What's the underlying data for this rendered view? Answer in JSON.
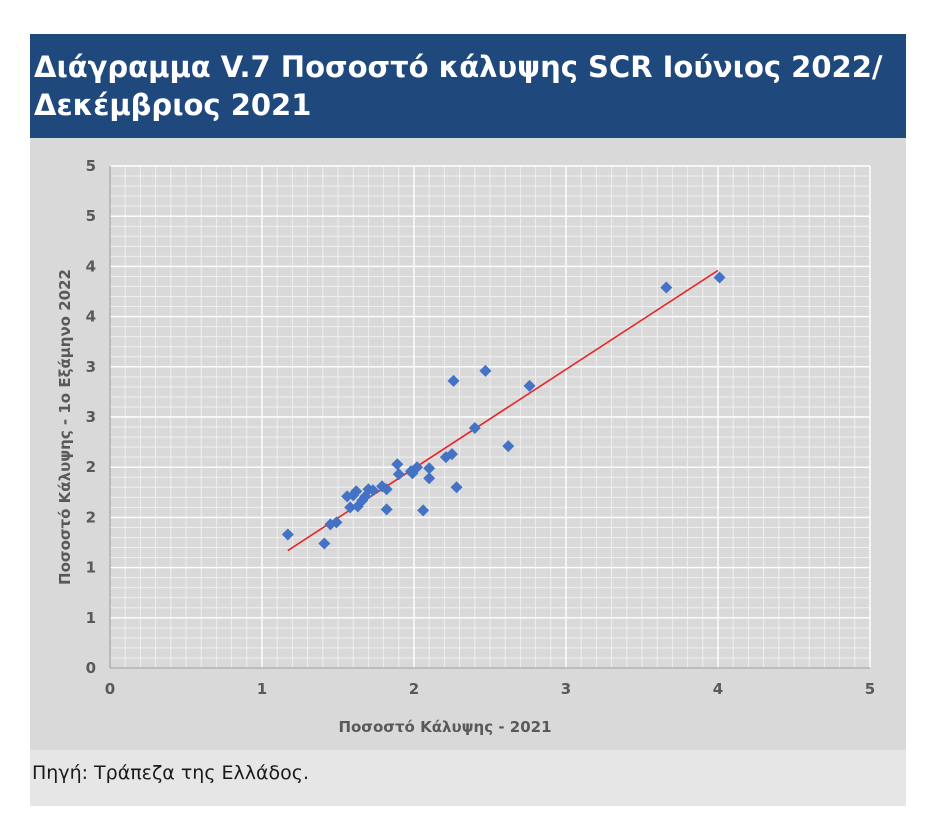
{
  "title": "Διάγραμμα V.7 Ποσοστό κάλυψης SCR Ιούνιος 2022/ Δεκέμβριος 2021",
  "source": "Πηγή: Τράπεζα της Ελλάδος.",
  "colors": {
    "title_bg": "#1f497d",
    "marker": "#4472c4",
    "trendline": "#e8262a"
  },
  "chart_data": {
    "type": "scatter",
    "xlabel": "Ποσοστό Κάλυψης - 2021",
    "ylabel": "Ποσοστό Κάλυψης - 1ο Εξάμηνο 2022",
    "xlim": [
      0,
      5
    ],
    "ylim": [
      0,
      5
    ],
    "x_ticks": [
      0,
      1,
      2,
      3,
      4,
      5
    ],
    "x_tick_labels": [
      "0",
      "1",
      "2",
      "3",
      "4",
      "5"
    ],
    "y_ticks": [
      0,
      0.5,
      1,
      1.5,
      2,
      2.5,
      3,
      3.5,
      4,
      4.5,
      5
    ],
    "y_tick_labels": [
      "0",
      "1",
      "1",
      "2",
      "2",
      "3",
      "3",
      "4",
      "4",
      "5",
      "5"
    ],
    "grid": true,
    "legend": "none",
    "points": [
      {
        "x": 1.17,
        "y": 1.33
      },
      {
        "x": 1.41,
        "y": 1.24
      },
      {
        "x": 1.45,
        "y": 1.43
      },
      {
        "x": 1.49,
        "y": 1.45
      },
      {
        "x": 1.56,
        "y": 1.71
      },
      {
        "x": 1.58,
        "y": 1.6
      },
      {
        "x": 1.6,
        "y": 1.72
      },
      {
        "x": 1.62,
        "y": 1.76
      },
      {
        "x": 1.63,
        "y": 1.61
      },
      {
        "x": 1.66,
        "y": 1.67
      },
      {
        "x": 1.68,
        "y": 1.71
      },
      {
        "x": 1.7,
        "y": 1.78
      },
      {
        "x": 1.73,
        "y": 1.77
      },
      {
        "x": 1.79,
        "y": 1.81
      },
      {
        "x": 1.82,
        "y": 1.58
      },
      {
        "x": 1.82,
        "y": 1.78
      },
      {
        "x": 1.89,
        "y": 2.03
      },
      {
        "x": 1.9,
        "y": 1.93
      },
      {
        "x": 1.98,
        "y": 1.96
      },
      {
        "x": 1.99,
        "y": 1.94
      },
      {
        "x": 2.02,
        "y": 2.0
      },
      {
        "x": 2.06,
        "y": 1.57
      },
      {
        "x": 2.1,
        "y": 1.89
      },
      {
        "x": 2.1,
        "y": 1.99
      },
      {
        "x": 2.21,
        "y": 2.1
      },
      {
        "x": 2.25,
        "y": 2.13
      },
      {
        "x": 2.26,
        "y": 2.86
      },
      {
        "x": 2.28,
        "y": 1.8
      },
      {
        "x": 2.4,
        "y": 2.39
      },
      {
        "x": 2.47,
        "y": 2.96
      },
      {
        "x": 2.62,
        "y": 2.21
      },
      {
        "x": 2.76,
        "y": 2.81
      },
      {
        "x": 3.66,
        "y": 3.79
      },
      {
        "x": 4.01,
        "y": 3.89
      }
    ],
    "trendline": {
      "x": [
        1.17,
        4.0
      ],
      "y": [
        1.17,
        3.96
      ]
    }
  }
}
